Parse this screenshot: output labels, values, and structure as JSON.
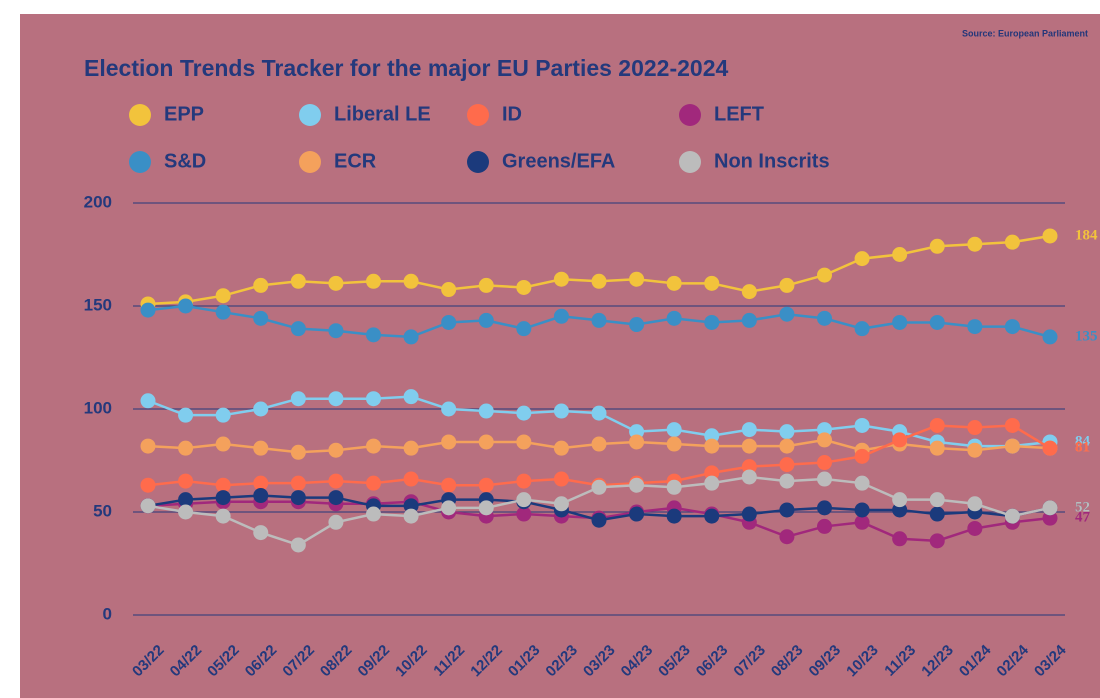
{
  "chart_data": {
    "type": "line",
    "title": "Election Trends Tracker for the major EU Parties 2022-2024",
    "source": "Source: European Parliament",
    "categories": [
      "03/22",
      "04/22",
      "05/22",
      "06/22",
      "07/22",
      "08/22",
      "09/22",
      "10/22",
      "11/22",
      "12/22",
      "01/23",
      "02/23",
      "03/23",
      "04/23",
      "05/23",
      "06/23",
      "07/23",
      "08/23",
      "09/23",
      "10/23",
      "11/23",
      "12/23",
      "01/24",
      "02/24",
      "03/24"
    ],
    "series": [
      {
        "name": "EPP",
        "color": "#f2c33c",
        "values": [
          151,
          152,
          155,
          160,
          162,
          161,
          162,
          162,
          158,
          160,
          159,
          163,
          162,
          163,
          161,
          161,
          157,
          160,
          165,
          173,
          175,
          179,
          180,
          181,
          184
        ]
      },
      {
        "name": "S&D",
        "color": "#3a8fc6",
        "values": [
          148,
          150,
          147,
          144,
          139,
          138,
          136,
          135,
          142,
          143,
          139,
          145,
          143,
          141,
          144,
          142,
          143,
          146,
          144,
          139,
          142,
          142,
          140,
          140,
          135
        ]
      },
      {
        "name": "Liberal LE",
        "color": "#80cdee",
        "values": [
          104,
          97,
          97,
          100,
          105,
          105,
          105,
          106,
          100,
          99,
          98,
          99,
          98,
          89,
          90,
          87,
          90,
          89,
          90,
          92,
          89,
          84,
          82,
          82,
          84
        ]
      },
      {
        "name": "ECR",
        "color": "#f4a15c",
        "values": [
          82,
          81,
          83,
          81,
          79,
          80,
          82,
          81,
          84,
          84,
          84,
          81,
          83,
          84,
          83,
          82,
          82,
          82,
          85,
          80,
          83,
          81,
          80,
          82,
          81
        ]
      },
      {
        "name": "ID",
        "color": "#ff6b4c",
        "values": [
          63,
          65,
          63,
          64,
          64,
          65,
          64,
          66,
          63,
          63,
          65,
          66,
          63,
          64,
          65,
          69,
          72,
          73,
          74,
          77,
          85,
          92,
          91,
          92,
          81
        ]
      },
      {
        "name": "LEFT",
        "color": "#a1287c",
        "values": [
          53,
          54,
          55,
          55,
          55,
          54,
          54,
          55,
          50,
          48,
          49,
          48,
          47,
          50,
          52,
          49,
          45,
          38,
          43,
          45,
          37,
          36,
          42,
          45,
          47
        ]
      },
      {
        "name": "Greens/EFA",
        "color": "#1b3a7c",
        "values": [
          53,
          56,
          57,
          58,
          57,
          57,
          53,
          53,
          56,
          56,
          55,
          51,
          46,
          49,
          48,
          48,
          49,
          51,
          52,
          51,
          51,
          49,
          50,
          48,
          52
        ]
      },
      {
        "name": "Non Inscrits",
        "color": "#bcbcbc",
        "values": [
          53,
          50,
          48,
          40,
          34,
          45,
          49,
          48,
          52,
          52,
          56,
          54,
          62,
          63,
          62,
          64,
          67,
          65,
          66,
          64,
          56,
          56,
          54,
          48,
          52
        ]
      }
    ],
    "ylim": [
      0,
      200
    ],
    "yticks": [
      0,
      50,
      100,
      150,
      200
    ],
    "grid": true
  }
}
